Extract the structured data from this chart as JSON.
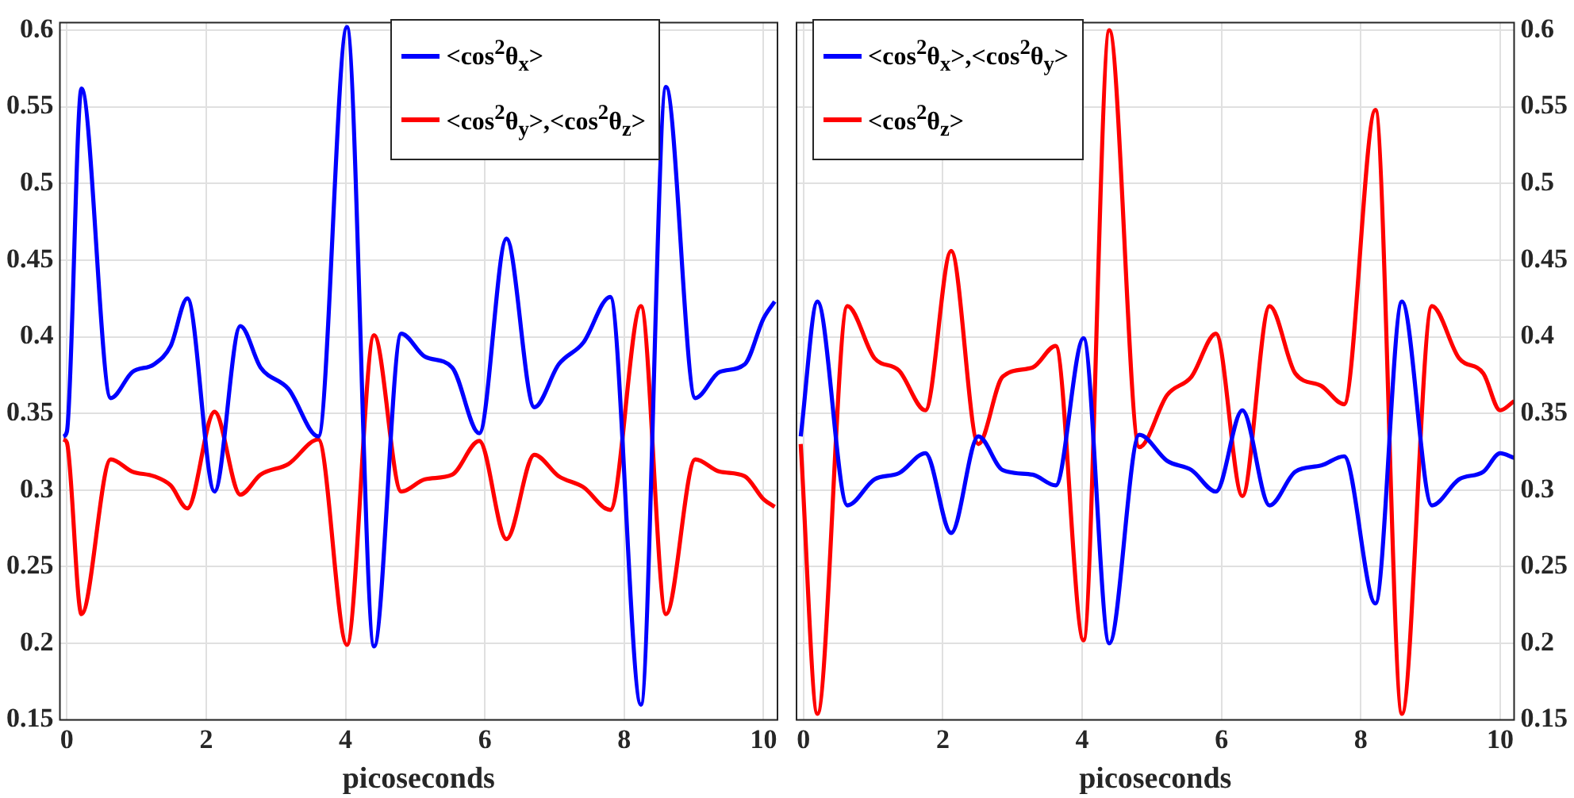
{
  "chart_data": [
    {
      "type": "line",
      "xlabel": "picoseconds",
      "xlim": [
        -0.1,
        10.2
      ],
      "xticks": [
        0,
        2,
        4,
        6,
        8,
        10
      ],
      "ylim": [
        0.15,
        0.605
      ],
      "yticks": [
        0.15,
        0.2,
        0.25,
        0.3,
        0.35,
        0.4,
        0.45,
        0.5,
        0.55,
        0.6
      ],
      "grid": true,
      "legend": "top right",
      "marker": "none",
      "line_style": "solid",
      "x": [
        -0.05,
        0,
        0.21,
        0.63,
        0.94,
        1.25,
        1.49,
        1.73,
        2.12,
        2.49,
        2.78,
        3.18,
        3.61,
        4.02,
        4.41,
        4.8,
        5.14,
        5.53,
        5.92,
        6.31,
        6.71,
        7.06,
        7.41,
        7.8,
        8.24,
        8.6,
        9.02,
        9.37,
        9.73,
        10.0,
        10.16
      ],
      "series": [
        {
          "name": "<cos$^{2}$θ$_{x}$>",
          "color": "#0000ff",
          "values": [
            0.335,
            0.338,
            0.562,
            0.36,
            0.377,
            0.382,
            0.394,
            0.425,
            0.299,
            0.407,
            0.38,
            0.366,
            0.335,
            0.602,
            0.198,
            0.402,
            0.387,
            0.38,
            0.337,
            0.464,
            0.354,
            0.382,
            0.396,
            0.426,
            0.16,
            0.563,
            0.36,
            0.377,
            0.382,
            0.412,
            0.423
          ]
        },
        {
          "name": "<cos$^{2}$θ$_{y}$>,<cos$^{2}$θ$_{z}$>",
          "color": "#ff0000",
          "values": [
            0.333,
            0.331,
            0.219,
            0.32,
            0.312,
            0.309,
            0.303,
            0.288,
            0.351,
            0.297,
            0.31,
            0.317,
            0.333,
            0.199,
            0.401,
            0.299,
            0.307,
            0.31,
            0.332,
            0.268,
            0.323,
            0.309,
            0.302,
            0.287,
            0.42,
            0.219,
            0.32,
            0.312,
            0.309,
            0.294,
            0.289
          ]
        }
      ]
    },
    {
      "type": "line",
      "xlabel": "picoseconds",
      "xlim": [
        -0.1,
        10.2
      ],
      "xticks": [
        0,
        2,
        4,
        6,
        8,
        10
      ],
      "ylim": [
        0.15,
        0.605
      ],
      "yticks": [
        0.15,
        0.2,
        0.25,
        0.3,
        0.35,
        0.4,
        0.45,
        0.5,
        0.55,
        0.6
      ],
      "grid": true,
      "legend": "top left",
      "marker": "none",
      "line_style": "solid",
      "x": [
        -0.04,
        0.2,
        0.63,
        1.02,
        1.37,
        1.75,
        2.12,
        2.51,
        2.86,
        3.29,
        3.62,
        4.02,
        4.39,
        4.82,
        5.22,
        5.57,
        5.92,
        6.3,
        6.69,
        7.06,
        7.43,
        7.76,
        8.21,
        8.59,
        9.02,
        9.41,
        9.76,
        10.0,
        10.2
      ],
      "series": [
        {
          "name": "<cos$^{2}$θ$_{x}$>,<cos$^{2}$θ$_{y}$>",
          "color": "#0000ff",
          "values": [
            0.335,
            0.423,
            0.29,
            0.307,
            0.311,
            0.324,
            0.272,
            0.335,
            0.313,
            0.31,
            0.303,
            0.399,
            0.2,
            0.336,
            0.319,
            0.313,
            0.299,
            0.352,
            0.29,
            0.312,
            0.316,
            0.322,
            0.226,
            0.423,
            0.29,
            0.307,
            0.312,
            0.324,
            0.321
          ]
        },
        {
          "name": "<cos$^{2}$θ$_{z}$>",
          "color": "#ff0000",
          "values": [
            0.33,
            0.154,
            0.42,
            0.386,
            0.378,
            0.352,
            0.456,
            0.33,
            0.374,
            0.38,
            0.394,
            0.202,
            0.6,
            0.328,
            0.362,
            0.374,
            0.402,
            0.296,
            0.42,
            0.376,
            0.368,
            0.356,
            0.548,
            0.154,
            0.42,
            0.386,
            0.376,
            0.352,
            0.358
          ]
        }
      ]
    }
  ]
}
